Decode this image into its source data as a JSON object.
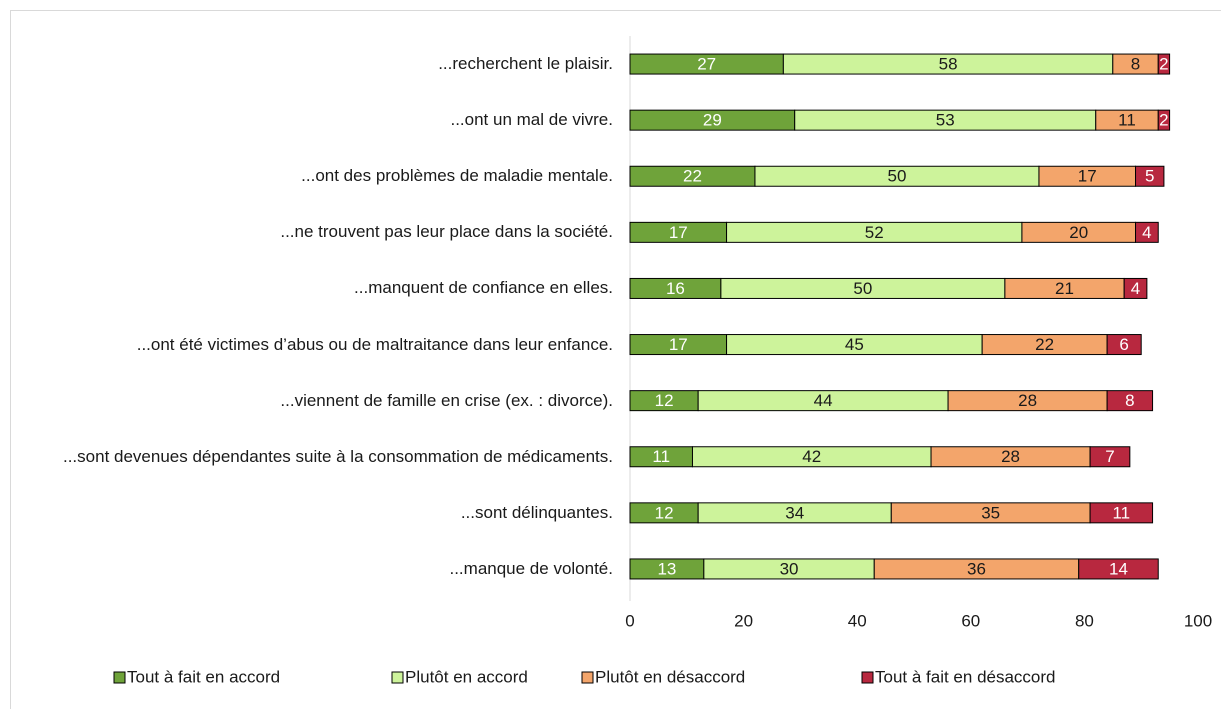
{
  "chart_data": {
    "type": "bar",
    "orientation": "horizontal",
    "stacked": true,
    "categories": [
      "...recherchent le plaisir.",
      "...ont un mal de vivre.",
      "...ont des problèmes de maladie mentale.",
      "...ne trouvent pas leur place dans la société.",
      "...manquent de confiance en elles.",
      "...ont été victimes d’abus ou de maltraitance dans leur enfance.",
      "...viennent de famille en crise (ex. : divorce).",
      "...sont devenues dépendantes suite à la consommation de médicaments.",
      "...sont délinquantes.",
      "...manque de volonté."
    ],
    "series": [
      {
        "name": "Tout à fait en accord",
        "color": "#6fa33a",
        "label_color": "#ffffff",
        "values": [
          27,
          29,
          22,
          17,
          16,
          17,
          12,
          11,
          12,
          13
        ]
      },
      {
        "name": "Plutôt en accord",
        "color": "#cdf39b",
        "label_color": "#1a1a1a",
        "values": [
          58,
          53,
          50,
          52,
          50,
          45,
          44,
          42,
          34,
          30
        ]
      },
      {
        "name": "Plutôt en désaccord",
        "color": "#f3a56b",
        "label_color": "#1a1a1a",
        "values": [
          8,
          11,
          17,
          20,
          21,
          22,
          28,
          28,
          35,
          36
        ]
      },
      {
        "name": "Tout à fait en désaccord",
        "color": "#b8283f",
        "label_color": "#ffffff",
        "values": [
          2,
          2,
          5,
          4,
          4,
          6,
          8,
          7,
          11,
          14
        ]
      }
    ],
    "xlim": [
      0,
      100
    ],
    "xticks": [
      0,
      20,
      40,
      60,
      80,
      100
    ],
    "grid": false,
    "legend": "bottom"
  }
}
